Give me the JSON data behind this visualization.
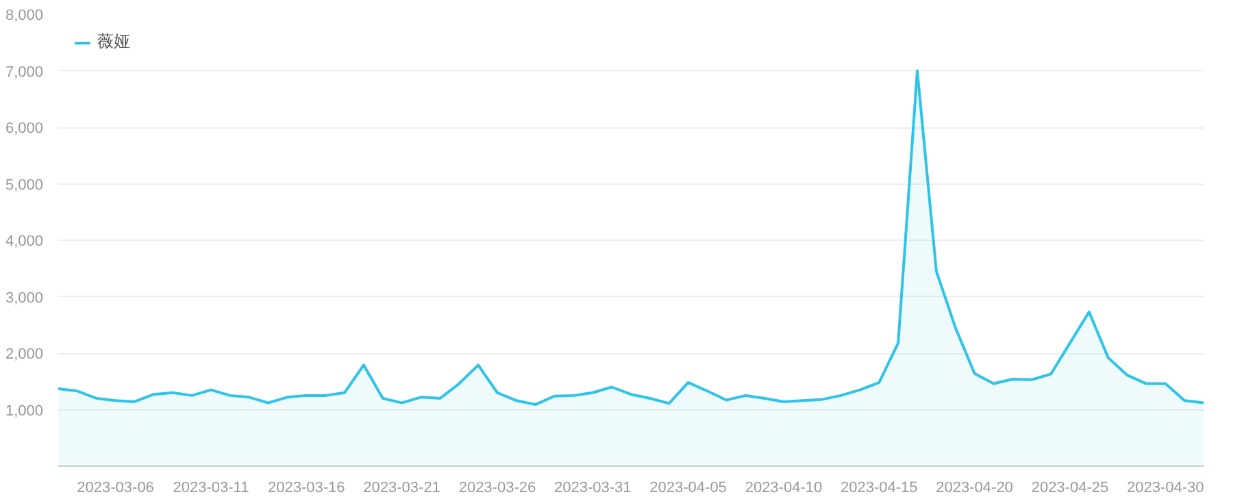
{
  "chart_data": {
    "type": "area",
    "x": [
      "2023-03-03",
      "2023-03-04",
      "2023-03-05",
      "2023-03-06",
      "2023-03-07",
      "2023-03-08",
      "2023-03-09",
      "2023-03-10",
      "2023-03-11",
      "2023-03-12",
      "2023-03-13",
      "2023-03-14",
      "2023-03-15",
      "2023-03-16",
      "2023-03-17",
      "2023-03-18",
      "2023-03-19",
      "2023-03-20",
      "2023-03-21",
      "2023-03-22",
      "2023-03-23",
      "2023-03-24",
      "2023-03-25",
      "2023-03-26",
      "2023-03-27",
      "2023-03-28",
      "2023-03-29",
      "2023-03-30",
      "2023-03-31",
      "2023-04-01",
      "2023-04-02",
      "2023-04-03",
      "2023-04-04",
      "2023-04-05",
      "2023-04-06",
      "2023-04-07",
      "2023-04-08",
      "2023-04-09",
      "2023-04-10",
      "2023-04-11",
      "2023-04-12",
      "2023-04-13",
      "2023-04-14",
      "2023-04-15",
      "2023-04-16",
      "2023-04-17",
      "2023-04-18",
      "2023-04-19",
      "2023-04-20",
      "2023-04-21",
      "2023-04-22",
      "2023-04-23",
      "2023-04-24",
      "2023-04-25",
      "2023-04-26",
      "2023-04-27",
      "2023-04-28",
      "2023-04-29",
      "2023-04-30",
      "2023-05-01",
      "2023-05-02"
    ],
    "series": [
      {
        "name": "薇娅",
        "color": "#2ec4e8",
        "values": [
          1370,
          1330,
          1200,
          1160,
          1140,
          1270,
          1300,
          1250,
          1350,
          1250,
          1220,
          1120,
          1220,
          1250,
          1250,
          1300,
          1790,
          1200,
          1120,
          1220,
          1200,
          1460,
          1790,
          1300,
          1160,
          1090,
          1240,
          1250,
          1300,
          1400,
          1270,
          1200,
          1110,
          1480,
          1330,
          1170,
          1250,
          1200,
          1140,
          1160,
          1180,
          1250,
          1350,
          1480,
          2180,
          7000,
          3450,
          2450,
          1640,
          1460,
          1540,
          1530,
          1630,
          2180,
          2730,
          1920,
          1610,
          1460,
          1460,
          1160,
          1120
        ]
      }
    ],
    "xlim": [
      "2023-03-03",
      "2023-05-02"
    ],
    "xticks": [
      "2023-03-06",
      "2023-03-11",
      "2023-03-16",
      "2023-03-21",
      "2023-03-26",
      "2023-03-31",
      "2023-04-05",
      "2023-04-10",
      "2023-04-15",
      "2023-04-20",
      "2023-04-25",
      "2023-04-30"
    ],
    "ylim": [
      0,
      8000
    ],
    "yticks": [
      {
        "value": 1000,
        "label": "1,000"
      },
      {
        "value": 2000,
        "label": "2,000"
      },
      {
        "value": 3000,
        "label": "3,000"
      },
      {
        "value": 4000,
        "label": "4,000"
      },
      {
        "value": 5000,
        "label": "5,000"
      },
      {
        "value": 6000,
        "label": "6,000"
      },
      {
        "value": 7000,
        "label": "7,000"
      },
      {
        "value": 8000,
        "label": "8,000"
      }
    ],
    "grid": "y",
    "legend": "top left"
  }
}
